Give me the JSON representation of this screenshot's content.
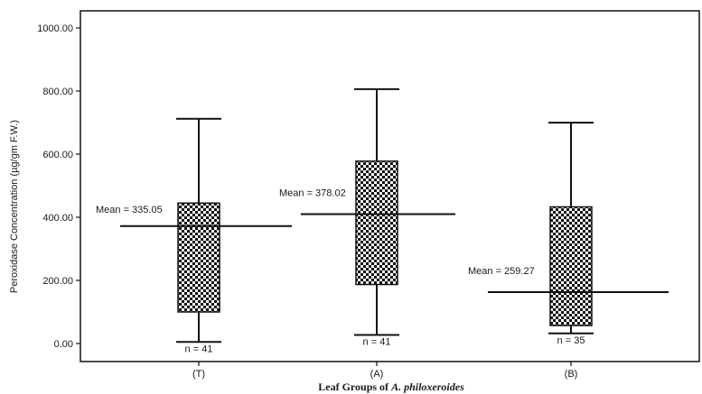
{
  "chart_data": {
    "type": "boxplot",
    "xlabel_prefix": "Leaf Groups of ",
    "xlabel_species": "A. philoxeroides",
    "ylabel": "Peroxidase Concentration (µg/gm F.W.)",
    "yticks": [
      "0.00",
      "200.00",
      "400.00",
      "600.00",
      "800.00",
      "1000.00"
    ],
    "ylim": [
      -55,
      1055
    ],
    "grid": false,
    "categories": [
      "(T)",
      "(A)",
      "(B)"
    ],
    "boxes": [
      {
        "category": "(T)",
        "whisker_low": 5,
        "q1": 100,
        "median": 372,
        "q3": 445,
        "whisker_high": 712,
        "mean_label": "Mean = 335.05",
        "n_label": "n = 41"
      },
      {
        "category": "(A)",
        "whisker_low": 27,
        "q1": 187,
        "median": 410,
        "q3": 578,
        "whisker_high": 806,
        "mean_label": "Mean = 378.02",
        "n_label": "n = 41"
      },
      {
        "category": "(B)",
        "whisker_low": 32,
        "q1": 57,
        "median": 163,
        "q3": 433,
        "whisker_high": 700,
        "mean_label": "Mean = 259.27",
        "n_label": "n = 35"
      }
    ],
    "fill_pattern": "checkerboard",
    "colors": {
      "stroke": "#111111",
      "check_dark": "#111111",
      "check_light": "#ffffff"
    }
  }
}
